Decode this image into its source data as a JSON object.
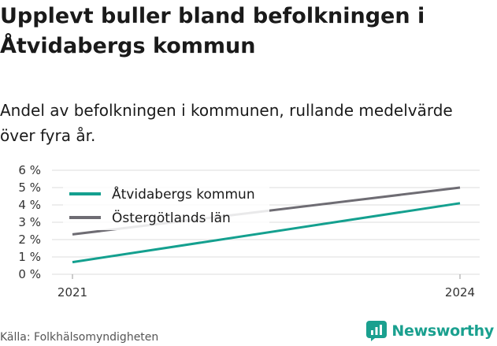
{
  "title": "Upplevt buller bland befolkningen i Åtvidabergs kommun",
  "subtitle": "Andel av befolkningen i kommunen, rullande medelvärde över fyra år.",
  "source": "Källa: Folkhälsomyndigheten",
  "brand": "Newsworthy",
  "colors": {
    "kommun": "#14a08f",
    "lan": "#6e6c73",
    "grid": "#dddddd",
    "brand": "#1aa08f"
  },
  "chart_data": {
    "type": "line",
    "x": [
      2021,
      2024
    ],
    "series": [
      {
        "name": "Åtvidabergs kommun",
        "values": [
          0.7,
          4.1
        ]
      },
      {
        "name": "Östergötlands län",
        "values": [
          2.3,
          5.0
        ]
      }
    ],
    "ylim": [
      0,
      6
    ],
    "yticks": [
      0,
      1,
      2,
      3,
      4,
      5,
      6
    ],
    "ytick_labels": [
      "0 %",
      "1 %",
      "2 %",
      "3 %",
      "4 %",
      "5 %",
      "6 %"
    ],
    "xticks": [
      2021,
      2024
    ],
    "xtick_labels": [
      "2021",
      "2024"
    ],
    "grid": true,
    "legend_position": "top-left"
  }
}
